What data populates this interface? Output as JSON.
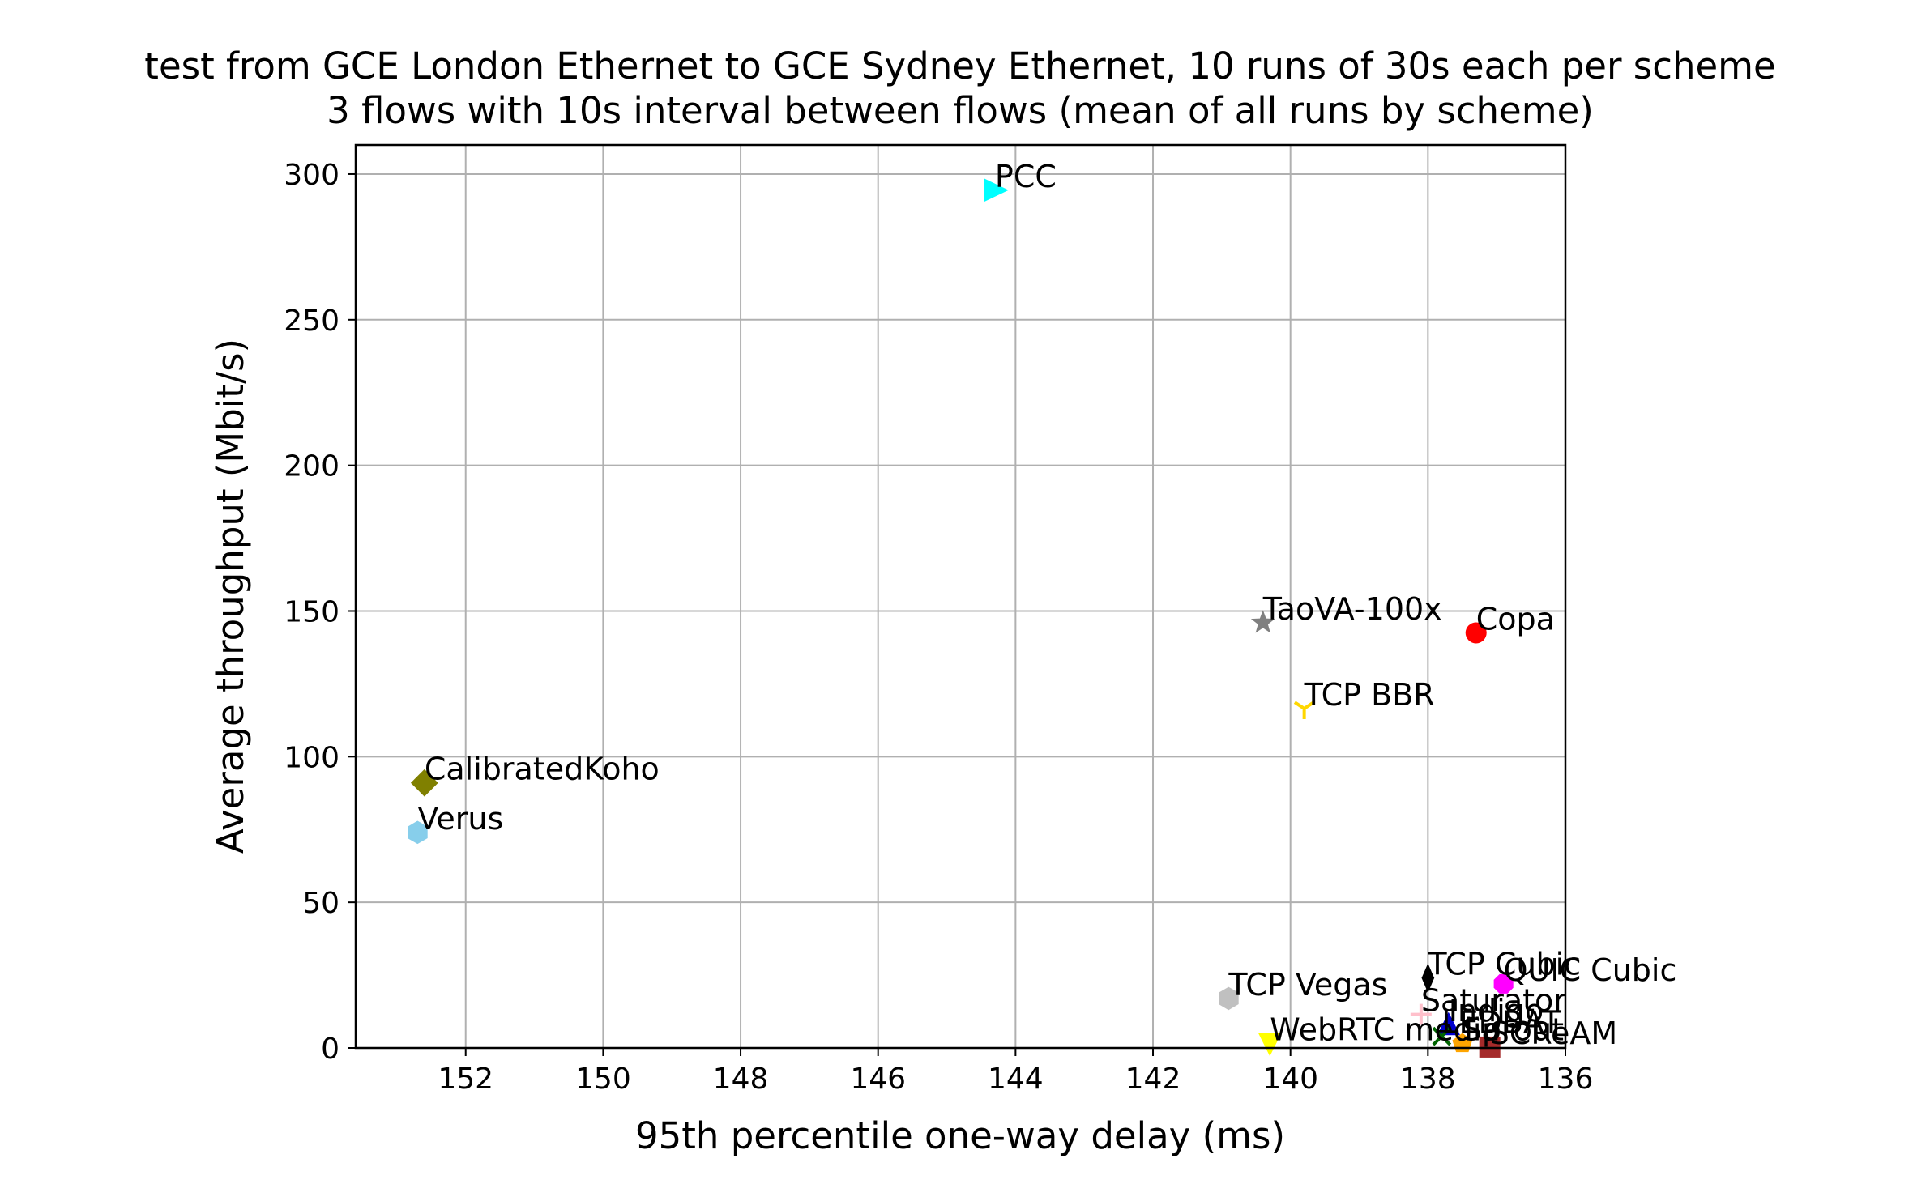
{
  "chart_data": {
    "type": "scatter",
    "title": [
      "test from GCE London Ethernet to GCE Sydney Ethernet, 10 runs of 30s each per scheme",
      "3 flows with 10s interval between flows (mean of all runs by scheme)"
    ],
    "xlabel": "95th percentile one-way delay (ms)",
    "ylabel": "Average throughput (Mbit/s)",
    "xlim": [
      153.6,
      136.0
    ],
    "ylim": [
      0,
      310
    ],
    "x_inverted": true,
    "grid": true,
    "xticks": [
      152,
      150,
      148,
      146,
      144,
      142,
      140,
      138,
      136
    ],
    "yticks": [
      0,
      50,
      100,
      150,
      200,
      250,
      300
    ],
    "points": [
      {
        "name": "PCC",
        "x": 144.3,
        "y": 294.5,
        "marker": "triangle-right",
        "color": "#00ffff"
      },
      {
        "name": "TaoVA-100x",
        "x": 140.4,
        "y": 146.0,
        "marker": "star",
        "color": "#808080"
      },
      {
        "name": "Copa",
        "x": 137.3,
        "y": 142.5,
        "marker": "circle",
        "color": "#ff0000"
      },
      {
        "name": "TCP BBR",
        "x": 139.8,
        "y": 116.5,
        "marker": "tri-down",
        "color": "#ffd700"
      },
      {
        "name": "CalibratedKoho",
        "x": 152.6,
        "y": 91.0,
        "marker": "diamond",
        "color": "#808000"
      },
      {
        "name": "Verus",
        "x": 152.7,
        "y": 74.0,
        "marker": "hexagon",
        "color": "#87ceeb"
      },
      {
        "name": "TCP Cubic",
        "x": 138.0,
        "y": 24.0,
        "marker": "thin-diamond",
        "color": "#000000"
      },
      {
        "name": "QUIC Cubic",
        "x": 136.9,
        "y": 22.0,
        "marker": "octagon",
        "color": "#ff00ff"
      },
      {
        "name": "TCP Vegas",
        "x": 140.9,
        "y": 17.0,
        "marker": "hexagon",
        "color": "#c0c0c0"
      },
      {
        "name": "Saturator",
        "x": 138.1,
        "y": 11.5,
        "marker": "plus",
        "color": "#ffc0cb"
      },
      {
        "name": "Indigo",
        "x": 137.7,
        "y": 8.0,
        "marker": "triangle-up",
        "color": "#0000cd"
      },
      {
        "name": "WebRTC media",
        "x": 140.3,
        "y": 1.5,
        "marker": "triangle-down",
        "color": "#ffff00"
      },
      {
        "name": "LEDBAT",
        "x": 137.8,
        "y": 4.0,
        "marker": "x",
        "color": "#006400"
      },
      {
        "name": "Sprout",
        "x": 137.5,
        "y": 1.5,
        "marker": "pentagon",
        "color": "#ffa500"
      },
      {
        "name": "SCReAM",
        "x": 137.1,
        "y": 0.3,
        "marker": "square",
        "color": "#a52a2a"
      }
    ]
  }
}
